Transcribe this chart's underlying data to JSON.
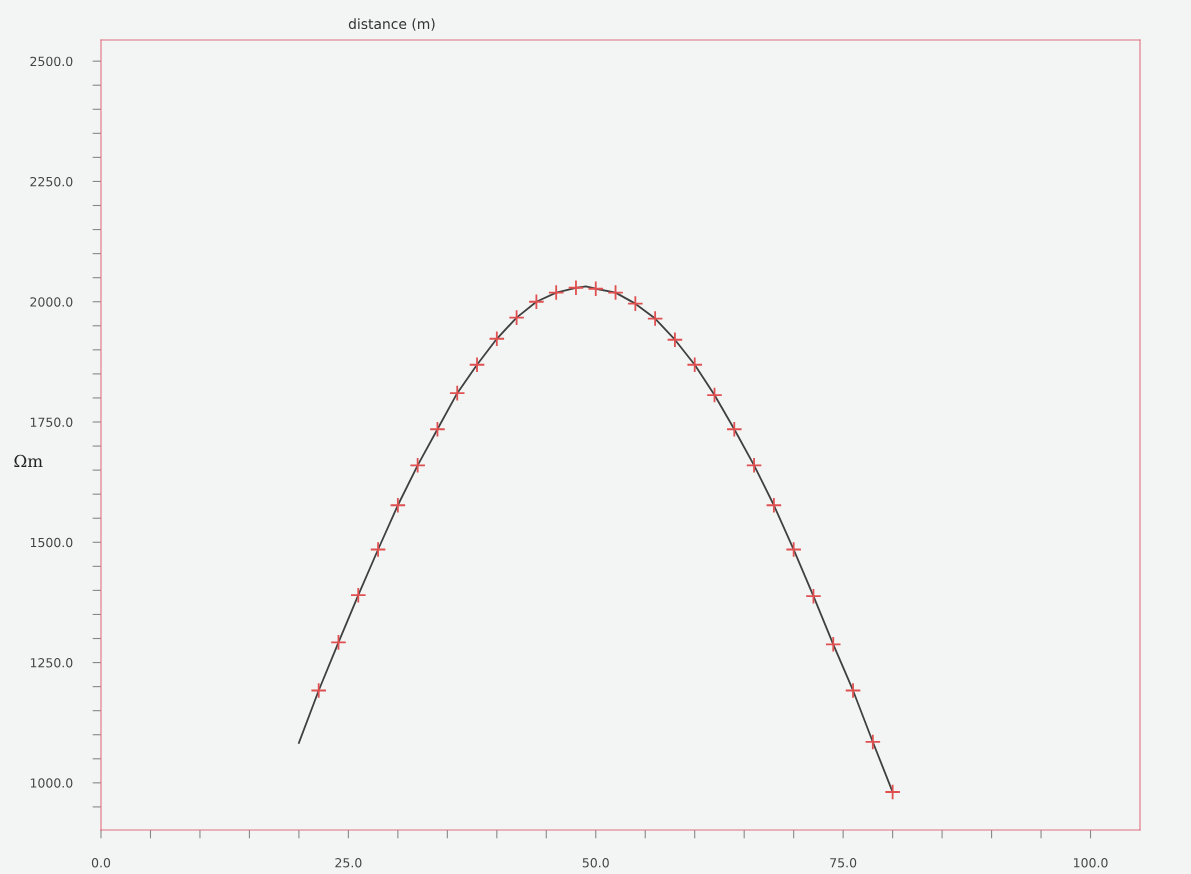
{
  "chart_data": {
    "type": "line",
    "xlabel": "distance (m)",
    "ylabel": "Ωm",
    "xlim": [
      0,
      105
    ],
    "ylim": [
      902,
      2544
    ],
    "xticks": [
      {
        "value": 0,
        "label": "0.0"
      },
      {
        "value": 5,
        "label": null
      },
      {
        "value": 10,
        "label": null
      },
      {
        "value": 15,
        "label": null
      },
      {
        "value": 20,
        "label": null
      },
      {
        "value": 25,
        "label": "25.0"
      },
      {
        "value": 30,
        "label": null
      },
      {
        "value": 35,
        "label": null
      },
      {
        "value": 40,
        "label": null
      },
      {
        "value": 45,
        "label": null
      },
      {
        "value": 50,
        "label": "50.0"
      },
      {
        "value": 55,
        "label": null
      },
      {
        "value": 60,
        "label": null
      },
      {
        "value": 65,
        "label": null
      },
      {
        "value": 70,
        "label": null
      },
      {
        "value": 75,
        "label": "75.0"
      },
      {
        "value": 80,
        "label": null
      },
      {
        "value": 85,
        "label": null
      },
      {
        "value": 90,
        "label": null
      },
      {
        "value": 95,
        "label": null
      },
      {
        "value": 100,
        "label": "100.0"
      }
    ],
    "yticks": [
      {
        "value": 950,
        "label": null
      },
      {
        "value": 1000,
        "label": "1000.0"
      },
      {
        "value": 1050,
        "label": null
      },
      {
        "value": 1100,
        "label": null
      },
      {
        "value": 1150,
        "label": null
      },
      {
        "value": 1200,
        "label": null
      },
      {
        "value": 1250,
        "label": "1250.0"
      },
      {
        "value": 1300,
        "label": null
      },
      {
        "value": 1350,
        "label": null
      },
      {
        "value": 1400,
        "label": null
      },
      {
        "value": 1450,
        "label": null
      },
      {
        "value": 1500,
        "label": "1500.0"
      },
      {
        "value": 1550,
        "label": null
      },
      {
        "value": 1600,
        "label": null
      },
      {
        "value": 1650,
        "label": null
      },
      {
        "value": 1700,
        "label": null
      },
      {
        "value": 1750,
        "label": "1750.0"
      },
      {
        "value": 1800,
        "label": null
      },
      {
        "value": 1850,
        "label": null
      },
      {
        "value": 1900,
        "label": null
      },
      {
        "value": 1950,
        "label": null
      },
      {
        "value": 2000,
        "label": "2000.0"
      },
      {
        "value": 2050,
        "label": null
      },
      {
        "value": 2100,
        "label": null
      },
      {
        "value": 2150,
        "label": null
      },
      {
        "value": 2200,
        "label": null
      },
      {
        "value": 2250,
        "label": "2250.0"
      },
      {
        "value": 2300,
        "label": null
      },
      {
        "value": 2350,
        "label": null
      },
      {
        "value": 2400,
        "label": null
      },
      {
        "value": 2450,
        "label": null
      },
      {
        "value": 2500,
        "label": "2500.0"
      }
    ],
    "grid": false,
    "series": [
      {
        "color": "#404040",
        "marker": "none",
        "line_style": "solid",
        "x": [
          20,
          22,
          24,
          26,
          28,
          30,
          32,
          34,
          36,
          38,
          40,
          42,
          44,
          46,
          48,
          49,
          50,
          52,
          54,
          56,
          58,
          60,
          62,
          64,
          66,
          68,
          70,
          72,
          74,
          76,
          78,
          80
        ],
        "values": [
          1083,
          1192,
          1292,
          1390,
          1485,
          1577,
          1660,
          1735,
          1810,
          1869,
          1923,
          1967,
          2000,
          2019,
          2029,
          2032,
          2027,
          2019,
          1996,
          1965,
          1921,
          1869,
          1806,
          1735,
          1660,
          1577,
          1485,
          1388,
          1288,
          1192,
          1085,
          981
        ]
      },
      {
        "type": "scatter",
        "color": "#e05050",
        "marker": "cross",
        "x": [
          22,
          24,
          26,
          28,
          30,
          32,
          34,
          36,
          38,
          40,
          42,
          44,
          46,
          48,
          50,
          52,
          54,
          56,
          58,
          60,
          62,
          64,
          66,
          68,
          70,
          72,
          74,
          76,
          78,
          80
        ],
        "values": [
          1192,
          1292,
          1390,
          1485,
          1577,
          1660,
          1735,
          1810,
          1869,
          1923,
          1967,
          2000,
          2019,
          2029,
          2027,
          2019,
          1996,
          1965,
          1921,
          1869,
          1806,
          1735,
          1660,
          1577,
          1485,
          1388,
          1288,
          1192,
          1085,
          981
        ]
      }
    ]
  }
}
